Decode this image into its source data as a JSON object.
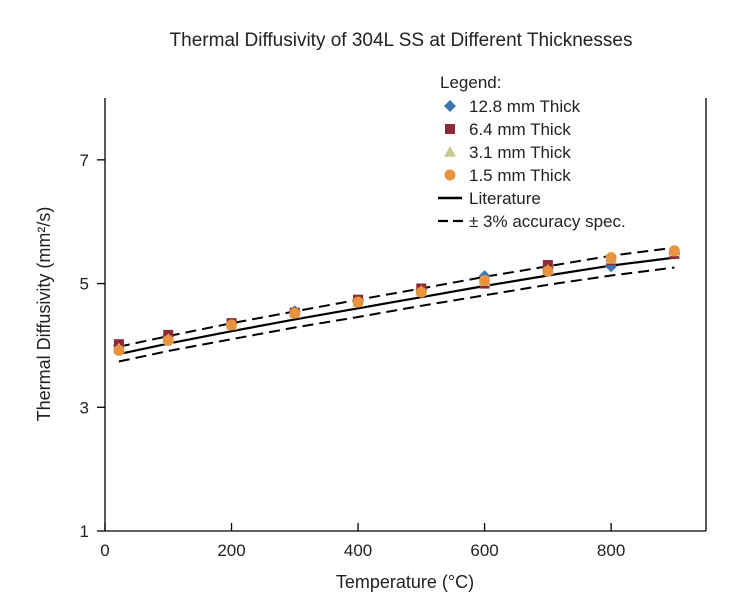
{
  "chart_data": {
    "type": "scatter",
    "title": "Thermal Diffusivity of 304L SS at Different Thicknesses",
    "xlabel": "Temperature (°C)",
    "ylabel": "Thermal Diffusivity (mm²/s)",
    "xlim": [
      0,
      950
    ],
    "ylim": [
      1,
      8
    ],
    "xticks": [
      0,
      200,
      400,
      600,
      800
    ],
    "yticks": [
      1,
      3,
      5,
      7
    ],
    "legend_title": "Legend:",
    "legend_position": "top-right",
    "grid": false,
    "series": [
      {
        "name": "12.8 mm Thick",
        "marker": "diamond",
        "color": "#3f73b1",
        "x": [
          22,
          100,
          200,
          300,
          400,
          500,
          600,
          700,
          800,
          900
        ],
        "y": [
          4.0,
          4.15,
          4.35,
          4.55,
          4.72,
          4.9,
          5.12,
          5.25,
          5.28,
          5.48
        ]
      },
      {
        "name": "6.4 mm Thick",
        "marker": "square",
        "color": "#8e2a35",
        "x": [
          22,
          100,
          200,
          300,
          400,
          500,
          600,
          700,
          800,
          900
        ],
        "y": [
          4.02,
          4.17,
          4.36,
          4.53,
          4.74,
          4.92,
          5.0,
          5.3,
          5.38,
          5.48
        ]
      },
      {
        "name": "3.1 mm Thick",
        "marker": "triangle",
        "color": "#c6c98a",
        "x": [
          22,
          100,
          200,
          300,
          400,
          500,
          600,
          700,
          800,
          900
        ],
        "y": [
          3.95,
          4.1,
          4.33,
          4.52,
          4.7,
          4.88,
          5.04,
          5.22,
          5.4,
          5.52
        ]
      },
      {
        "name": "1.5 mm Thick",
        "marker": "circle",
        "color": "#e8943f",
        "x": [
          22,
          100,
          200,
          300,
          400,
          500,
          600,
          700,
          800,
          900
        ],
        "y": [
          3.92,
          4.08,
          4.33,
          4.52,
          4.7,
          4.86,
          5.05,
          5.2,
          5.42,
          5.53
        ]
      },
      {
        "name": "Literature",
        "marker": "solid-line",
        "color": "#000000",
        "x": [
          22,
          100,
          200,
          300,
          400,
          500,
          600,
          700,
          800,
          900
        ],
        "y": [
          3.86,
          4.03,
          4.23,
          4.42,
          4.6,
          4.78,
          4.96,
          5.13,
          5.29,
          5.42
        ]
      },
      {
        "name": "± 3% accuracy spec.",
        "marker": "dashed-line",
        "color": "#000000",
        "x": [
          22,
          100,
          200,
          300,
          400,
          500,
          600,
          700,
          800,
          900
        ],
        "y_upper": [
          3.98,
          4.15,
          4.36,
          4.55,
          4.74,
          4.92,
          5.11,
          5.28,
          5.45,
          5.58
        ],
        "y_lower": [
          3.74,
          3.91,
          4.1,
          4.29,
          4.46,
          4.64,
          4.81,
          4.98,
          5.13,
          5.26
        ]
      }
    ]
  }
}
